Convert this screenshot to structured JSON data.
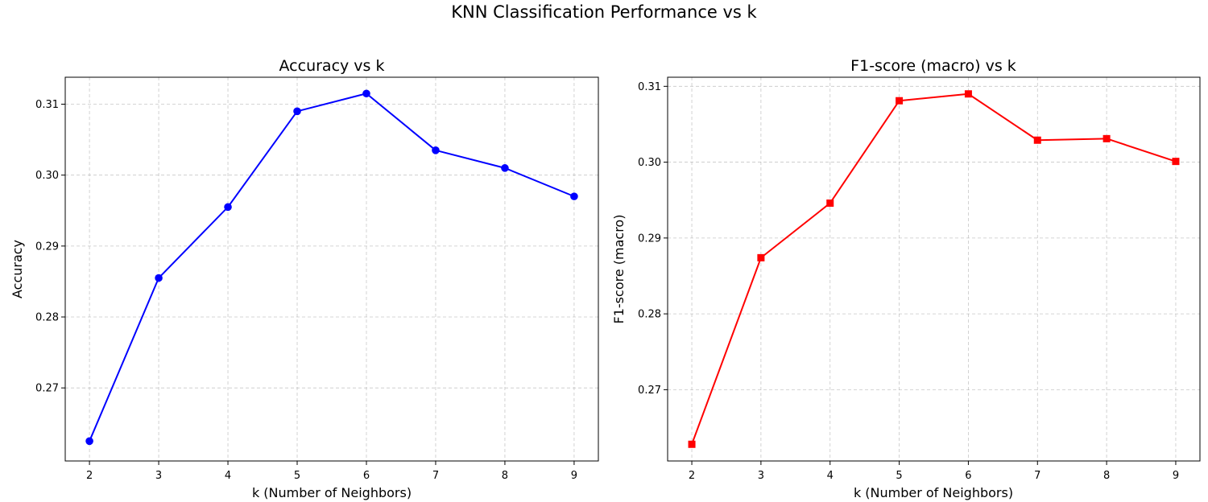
{
  "figure": {
    "suptitle": "KNN Classification Performance vs k"
  },
  "chart_data": [
    {
      "type": "line",
      "title": "Accuracy vs k",
      "xlabel": "k (Number of Neighbors)",
      "ylabel": "Accuracy",
      "x": [
        2,
        3,
        4,
        5,
        6,
        7,
        8,
        9
      ],
      "xlim": [
        1.65,
        9.35
      ],
      "ylim": [
        0.2597,
        0.3138
      ],
      "xticks": [
        2,
        3,
        4,
        5,
        6,
        7,
        8,
        9
      ],
      "yticks": [
        0.27,
        0.28,
        0.29,
        0.3,
        0.31
      ],
      "ytick_labels": [
        "0.27",
        "0.28",
        "0.29",
        "0.30",
        "0.31"
      ],
      "grid": true,
      "series": [
        {
          "values": [
            0.2625,
            0.2855,
            0.2955,
            0.309,
            0.3115,
            0.3035,
            0.301,
            0.297
          ],
          "color": "#0000ff",
          "marker": "circle"
        }
      ]
    },
    {
      "type": "line",
      "title": "F1-score (macro) vs k",
      "xlabel": "k (Number of Neighbors)",
      "ylabel": "F1-score (macro)",
      "x": [
        2,
        3,
        4,
        5,
        6,
        7,
        8,
        9
      ],
      "xlim": [
        1.65,
        9.35
      ],
      "ylim": [
        0.2606,
        0.3112
      ],
      "xticks": [
        2,
        3,
        4,
        5,
        6,
        7,
        8,
        9
      ],
      "yticks": [
        0.27,
        0.28,
        0.29,
        0.3,
        0.31
      ],
      "ytick_labels": [
        "0.27",
        "0.28",
        "0.29",
        "0.30",
        "0.31"
      ],
      "grid": true,
      "series": [
        {
          "values": [
            0.2628,
            0.2874,
            0.2946,
            0.3081,
            0.309,
            0.3029,
            0.3031,
            0.3001
          ],
          "color": "#ff0000",
          "marker": "square"
        }
      ]
    }
  ]
}
